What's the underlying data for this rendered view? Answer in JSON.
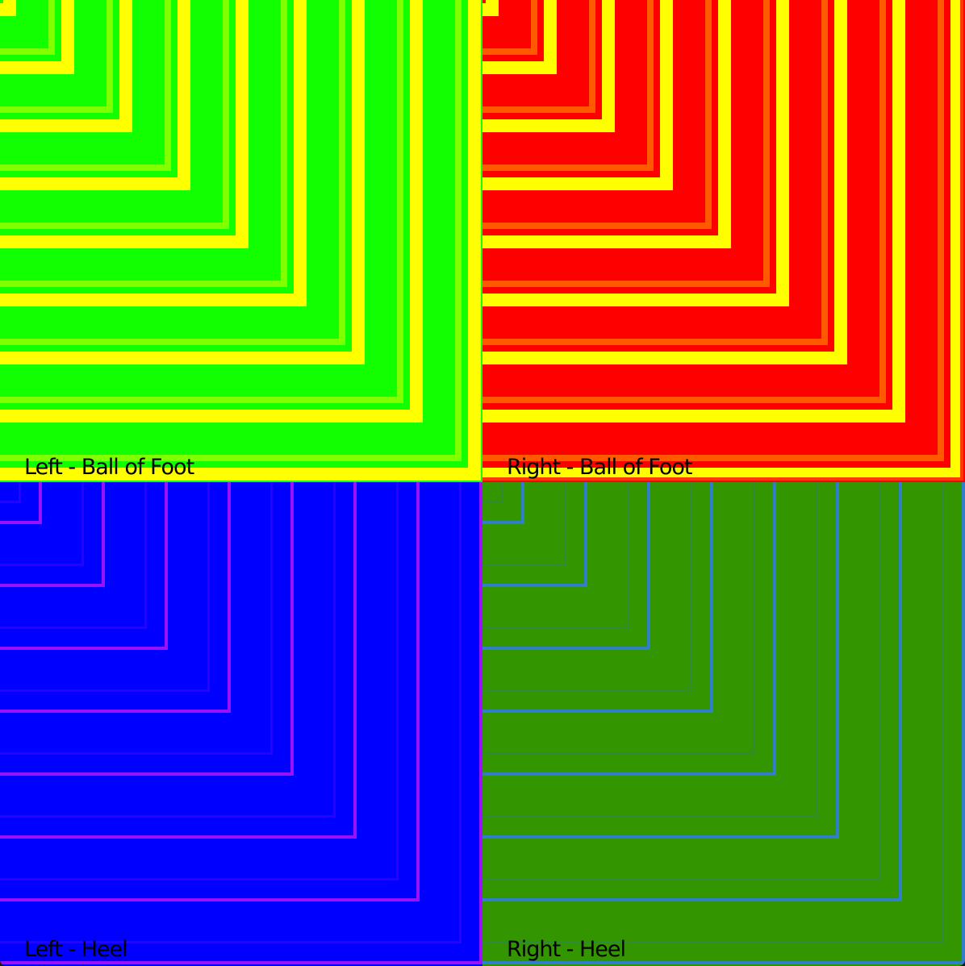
{
  "quadrants": [
    {
      "id": "left-ball",
      "label": "Left - Ball of Foot",
      "base_color": "#11ff00",
      "stripe_colors": [
        "#ffff00",
        "#80ff00",
        "#11ff00"
      ],
      "outer_color": "#ffff00"
    },
    {
      "id": "right-ball",
      "label": "Right - Ball of Foot",
      "base_color": "#ff0000",
      "stripe_colors": [
        "#ffff00",
        "#ff5a00",
        "#ff0000"
      ],
      "outer_color": "#ff3a00"
    },
    {
      "id": "left-heel",
      "label": "Left - Heel",
      "base_color": "#0000ff",
      "stripe_colors": [
        "#9a10ff",
        "#2a00ff",
        "#0000ff"
      ],
      "outer_color": "#1200ff"
    },
    {
      "id": "right-heel",
      "label": "Right - Heel",
      "base_color": "#339600",
      "stripe_colors": [
        "#2f80c8",
        "#2f8a3a",
        "#339600"
      ],
      "outer_color": "#2f8040"
    }
  ]
}
